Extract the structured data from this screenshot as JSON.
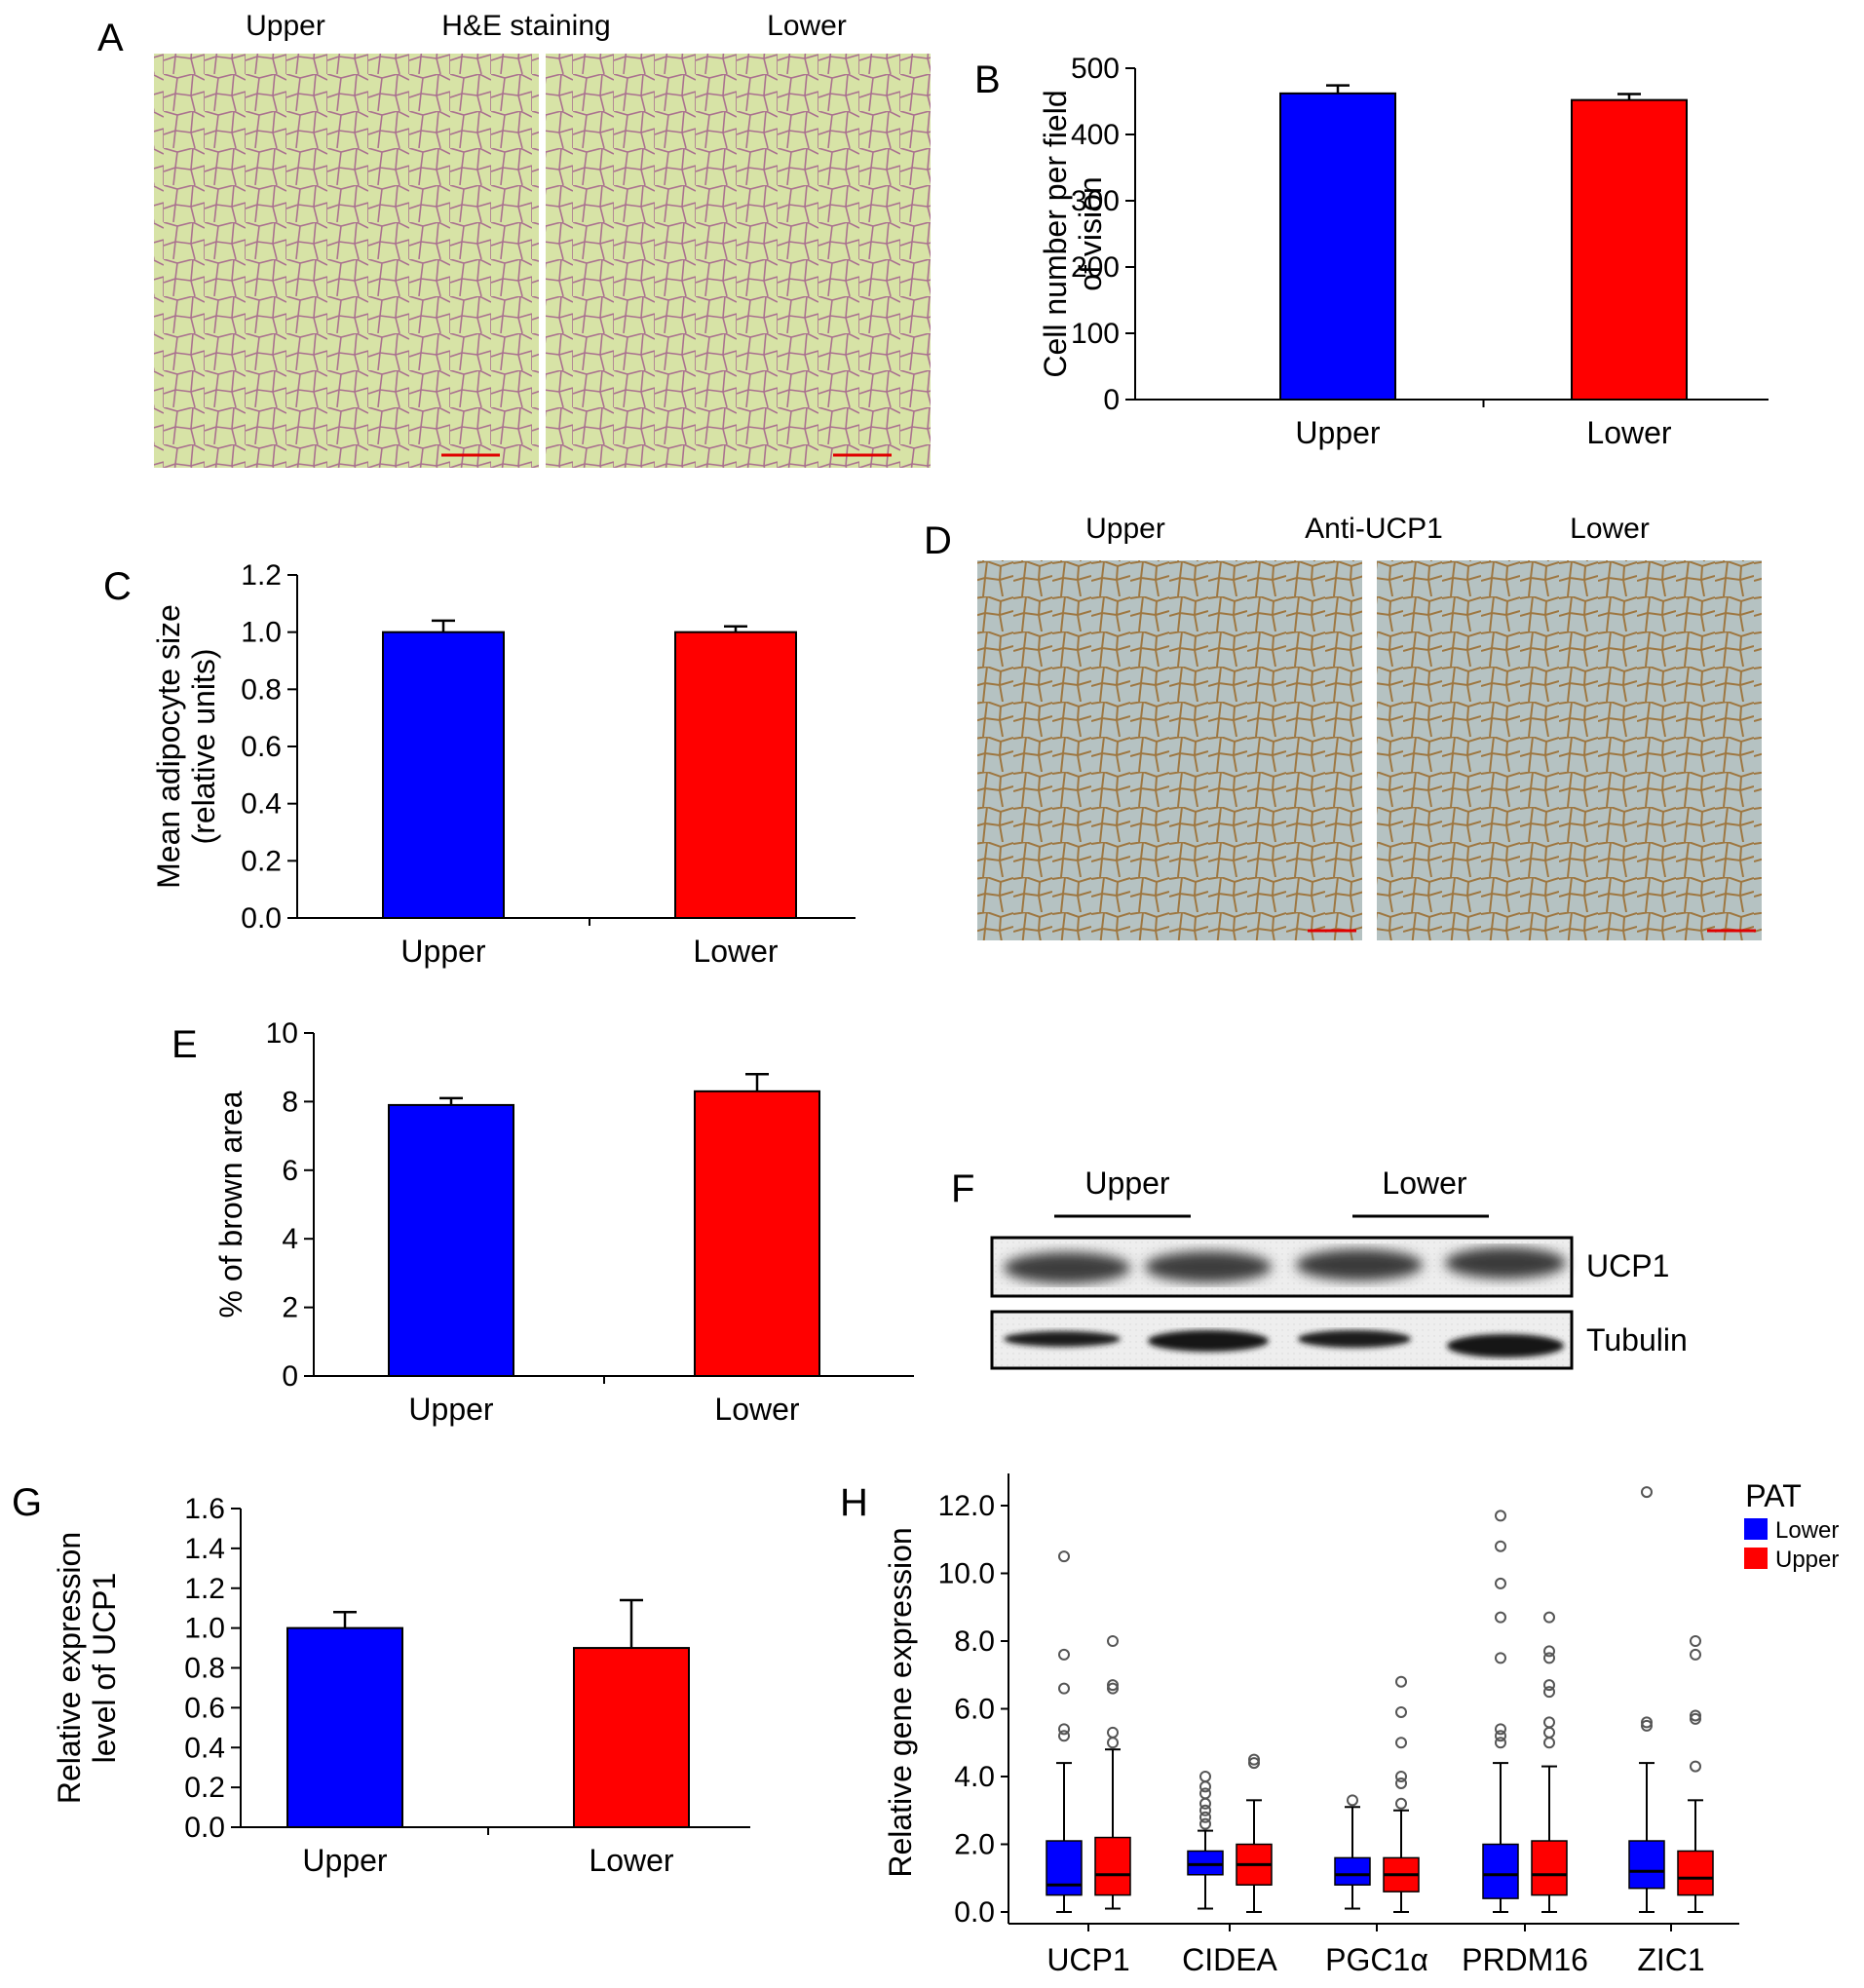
{
  "panels": {
    "A": {
      "letter": "A",
      "left_label": "Upper",
      "title": "H&E staining",
      "right_label": "Lower",
      "tissue_bg": "#d7e3a6",
      "tissue_stain": "#9a4a86"
    },
    "B": {
      "letter": "B"
    },
    "C": {
      "letter": "C"
    },
    "D": {
      "letter": "D",
      "left_label": "Upper",
      "title": "Anti-UCP1",
      "right_label": "Lower",
      "tissue_bg": "#b5c2c2",
      "tissue_stain": "#9a6a2a"
    },
    "E": {
      "letter": "E"
    },
    "F": {
      "letter": "F",
      "group1": "Upper",
      "group2": "Lower",
      "row1_label": "UCP1",
      "row2_label": "Tubulin"
    },
    "G": {
      "letter": "G"
    },
    "H": {
      "letter": "H"
    }
  },
  "colors": {
    "upper": "#0000ff",
    "lower": "#ff0000",
    "scale_bar": "#e00000"
  },
  "chart_data": [
    {
      "id": "B",
      "type": "bar",
      "categories": [
        "Upper",
        "Lower"
      ],
      "values": [
        462,
        452
      ],
      "errors": [
        12,
        9
      ],
      "ylabel": "Cell number per field of vision",
      "ylim": [
        0,
        500
      ],
      "yticks": [
        0,
        100,
        200,
        300,
        400,
        500
      ]
    },
    {
      "id": "C",
      "type": "bar",
      "categories": [
        "Upper",
        "Lower"
      ],
      "values": [
        1.0,
        1.0
      ],
      "errors": [
        0.04,
        0.02
      ],
      "ylabel": "Mean adipocyte size (relative units)",
      "ylim": [
        0,
        1.2
      ],
      "yticks": [
        "0.0",
        "0.2",
        "0.4",
        "0.6",
        "0.8",
        "1.0",
        "1.2"
      ]
    },
    {
      "id": "E",
      "type": "bar",
      "categories": [
        "Upper",
        "Lower"
      ],
      "values": [
        7.9,
        8.3
      ],
      "errors": [
        0.2,
        0.5
      ],
      "ylabel": "% of brown area",
      "ylim": [
        0,
        10
      ],
      "yticks": [
        0,
        2,
        4,
        6,
        8,
        10
      ]
    },
    {
      "id": "G",
      "type": "bar",
      "categories": [
        "Upper",
        "Lower"
      ],
      "values": [
        1.0,
        0.9
      ],
      "errors": [
        0.08,
        0.24
      ],
      "ylabel": "Relative expression level of UCP1",
      "ylim": [
        0,
        1.6
      ],
      "yticks": [
        "0.0",
        "0.2",
        "0.4",
        "0.6",
        "0.8",
        "1.0",
        "1.2",
        "1.4",
        "1.6"
      ]
    },
    {
      "id": "H",
      "type": "boxplot",
      "categories": [
        "UCP1",
        "CIDEA",
        "PGC1α",
        "PRDM16",
        "ZIC1"
      ],
      "ylabel": "Relative gene expression",
      "ylim": [
        0,
        12.0
      ],
      "yticks": [
        "0.0",
        "2.0",
        "4.0",
        "6.0",
        "8.0",
        "10.0",
        "12.0"
      ],
      "legend_title": "PAT",
      "legend_position": "top-right",
      "series": [
        {
          "name": "Lower",
          "boxes": [
            {
              "whislo": 0.0,
              "q1": 0.5,
              "med": 0.8,
              "q3": 2.1,
              "whishi": 4.4,
              "fliers": [
                5.2,
                5.4,
                6.6,
                7.6,
                10.5
              ]
            },
            {
              "whislo": 0.1,
              "q1": 1.1,
              "med": 1.4,
              "q3": 1.8,
              "whishi": 2.4,
              "fliers": [
                2.6,
                2.8,
                3.0,
                3.2,
                3.5,
                3.7,
                4.0
              ]
            },
            {
              "whislo": 0.1,
              "q1": 0.8,
              "med": 1.1,
              "q3": 1.6,
              "whishi": 3.1,
              "fliers": [
                3.3
              ]
            },
            {
              "whislo": 0.0,
              "q1": 0.4,
              "med": 1.1,
              "q3": 2.0,
              "whishi": 4.4,
              "fliers": [
                5.0,
                5.2,
                5.4,
                7.5,
                8.7,
                9.7,
                10.8,
                11.7
              ]
            },
            {
              "whislo": 0.0,
              "q1": 0.7,
              "med": 1.2,
              "q3": 2.1,
              "whishi": 4.4,
              "fliers": [
                5.5,
                5.6,
                12.4
              ]
            }
          ]
        },
        {
          "name": "Upper",
          "boxes": [
            {
              "whislo": 0.1,
              "q1": 0.5,
              "med": 1.1,
              "q3": 2.2,
              "whishi": 4.8,
              "fliers": [
                5.0,
                5.3,
                6.6,
                6.7,
                8.0
              ]
            },
            {
              "whislo": 0.0,
              "q1": 0.8,
              "med": 1.4,
              "q3": 2.0,
              "whishi": 3.3,
              "fliers": [
                4.4,
                4.5
              ]
            },
            {
              "whislo": 0.0,
              "q1": 0.6,
              "med": 1.1,
              "q3": 1.6,
              "whishi": 3.0,
              "fliers": [
                3.2,
                3.8,
                4.0,
                5.0,
                5.9,
                6.8
              ]
            },
            {
              "whislo": 0.0,
              "q1": 0.5,
              "med": 1.1,
              "q3": 2.1,
              "whishi": 4.3,
              "fliers": [
                5.0,
                5.3,
                5.6,
                6.5,
                6.7,
                7.5,
                7.7,
                8.7
              ]
            },
            {
              "whislo": 0.0,
              "q1": 0.5,
              "med": 1.0,
              "q3": 1.8,
              "whishi": 3.3,
              "fliers": [
                4.3,
                5.7,
                5.8,
                7.6,
                8.0
              ]
            }
          ]
        }
      ]
    }
  ]
}
